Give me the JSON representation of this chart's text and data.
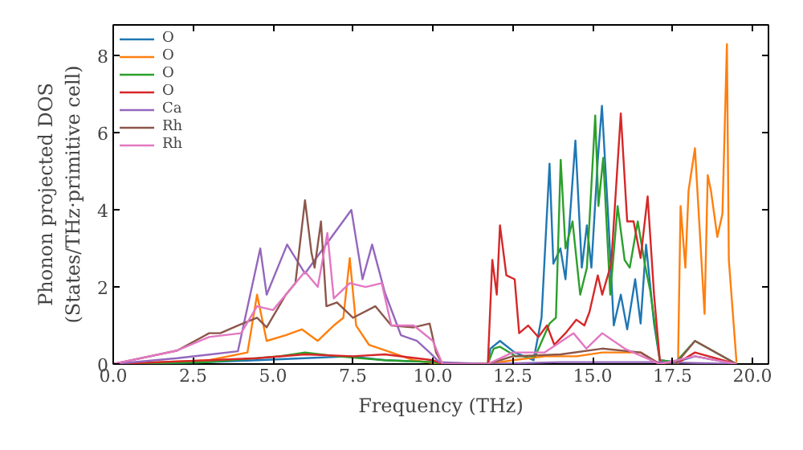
{
  "chart_data": {
    "type": "line",
    "xlabel": "Frequency (THz)",
    "ylabel": "Phonon projected DOS\n(States/THz·primitive cell)",
    "xlim": [
      0,
      20.5
    ],
    "ylim": [
      0,
      8.8
    ],
    "xticks": [
      {
        "value": 0,
        "label": "0.0"
      },
      {
        "value": 2.5,
        "label": "2.5"
      },
      {
        "value": 5,
        "label": "5.0"
      },
      {
        "value": 7.5,
        "label": "7.5"
      },
      {
        "value": 10,
        "label": "10.0"
      },
      {
        "value": 12.5,
        "label": "12.5"
      },
      {
        "value": 15,
        "label": "15.0"
      },
      {
        "value": 17.5,
        "label": "17.5"
      },
      {
        "value": 20,
        "label": "20.0"
      }
    ],
    "yticks": [
      0,
      2,
      4,
      6,
      8
    ],
    "grid": false,
    "legend": "top left",
    "marker": "none",
    "line_style": "solid",
    "series": [
      {
        "name": "O",
        "color": "#1f77b4",
        "x": [
          0,
          3,
          4.5,
          6,
          7.4,
          8.5,
          10,
          10.3,
          11.72,
          11.8,
          12.1,
          12.56,
          13.15,
          13.4,
          13.65,
          13.77,
          13.99,
          14.15,
          14.46,
          14.66,
          14.82,
          14.96,
          15.16,
          15.29,
          15.5,
          15.66,
          15.88,
          16.08,
          16.33,
          16.5,
          16.67,
          16.92,
          17.1,
          17.6,
          18.2,
          19.5
        ],
        "values": [
          0,
          0.05,
          0.1,
          0.15,
          0.2,
          0.1,
          0.05,
          0,
          0,
          0.4,
          0.6,
          0.3,
          0.1,
          1.2,
          5.2,
          2.6,
          3.0,
          2.2,
          5.8,
          2.5,
          3.6,
          2.5,
          5.3,
          6.7,
          3.6,
          1.0,
          1.8,
          0.9,
          2.2,
          1.05,
          3.1,
          1.05,
          0.1,
          0.05,
          0.2,
          0
        ]
      },
      {
        "name": "O",
        "color": "#ff7f0e",
        "x": [
          0,
          3,
          4.2,
          4.5,
          4.8,
          5.4,
          5.9,
          6.4,
          6.9,
          7.2,
          7.4,
          7.6,
          8.0,
          8.7,
          9.4,
          10.2,
          11.72,
          12.5,
          13.5,
          14.5,
          15.3,
          16.5,
          17.1,
          17.67,
          17.75,
          17.9,
          18.0,
          18.2,
          18.5,
          18.6,
          18.7,
          18.9,
          19.06,
          19.2,
          19.26,
          19.5
        ],
        "values": [
          0,
          0.1,
          0.3,
          1.8,
          0.6,
          0.75,
          0.9,
          0.6,
          1.0,
          1.2,
          2.75,
          1.0,
          0.5,
          0.3,
          0.1,
          0,
          0,
          0.1,
          0.2,
          0.2,
          0.3,
          0.3,
          0,
          0,
          4.1,
          2.5,
          4.5,
          5.6,
          1.3,
          4.9,
          4.5,
          3.3,
          3.9,
          8.3,
          2.7,
          0.05
        ]
      },
      {
        "name": "O",
        "color": "#2ca02c",
        "x": [
          0,
          3,
          5.2,
          6,
          7.0,
          8.5,
          10,
          10.3,
          11.72,
          11.9,
          12.1,
          12.6,
          13.2,
          13.65,
          13.85,
          14.0,
          14.15,
          14.37,
          14.61,
          14.82,
          15.08,
          15.18,
          15.33,
          15.55,
          15.78,
          16.0,
          16.16,
          16.41,
          16.63,
          16.8,
          17.1,
          17.6,
          18.2,
          19.5
        ],
        "values": [
          0,
          0.05,
          0.2,
          0.3,
          0.2,
          0.1,
          0.05,
          0,
          0,
          0.4,
          0.45,
          0.2,
          0.2,
          1.05,
          1.2,
          5.3,
          3.0,
          3.7,
          1.8,
          2.5,
          6.45,
          4.1,
          5.35,
          1.8,
          4.1,
          2.7,
          2.5,
          3.7,
          2.6,
          1.9,
          0.1,
          0.05,
          0.6,
          0
        ]
      },
      {
        "name": "O",
        "color": "#d62728",
        "x": [
          0,
          3,
          4.5,
          6,
          7.5,
          8.5,
          10,
          10.3,
          11.72,
          11.86,
          12.0,
          12.1,
          12.3,
          12.56,
          12.7,
          12.98,
          13.3,
          13.57,
          13.8,
          14.15,
          14.49,
          14.74,
          14.9,
          15.16,
          15.3,
          15.58,
          15.88,
          16.08,
          16.28,
          16.5,
          16.72,
          16.92,
          17.1,
          17.17,
          17.6,
          18.2,
          19.5
        ],
        "values": [
          0,
          0.1,
          0.15,
          0.25,
          0.2,
          0.25,
          0.1,
          0,
          0,
          2.7,
          1.8,
          3.6,
          2.3,
          2.2,
          0.8,
          1.0,
          0.7,
          1.0,
          0.5,
          0.8,
          1.15,
          1.0,
          1.35,
          2.3,
          1.8,
          2.6,
          6.5,
          3.7,
          3.7,
          2.75,
          4.35,
          1.8,
          0.1,
          0,
          0,
          0.3,
          0
        ]
      },
      {
        "name": "Ca",
        "color": "#9467bd",
        "x": [
          0,
          2,
          3.9,
          4.6,
          4.8,
          5.44,
          6.0,
          7.45,
          7.8,
          8.1,
          8.5,
          9.0,
          9.5,
          9.9,
          10.2,
          11.72,
          14,
          17.1,
          19.5
        ],
        "values": [
          0,
          0.15,
          0.33,
          3.0,
          1.8,
          3.1,
          2.35,
          4.0,
          2.2,
          3.1,
          1.85,
          0.75,
          0.6,
          0.3,
          0.05,
          0,
          0.05,
          0.05,
          0
        ]
      },
      {
        "name": "Rh",
        "color": "#8c564b",
        "x": [
          0,
          2,
          3.0,
          3.35,
          3.9,
          4.5,
          4.8,
          5.4,
          5.7,
          6.0,
          6.2,
          6.3,
          6.5,
          6.67,
          7.0,
          7.5,
          8.2,
          8.7,
          9.4,
          9.9,
          10.1,
          10.3,
          11.72,
          12.5,
          14.0,
          15.3,
          16.5,
          17.1,
          17.6,
          18.2,
          19.5
        ],
        "values": [
          0,
          0.35,
          0.8,
          0.8,
          1.0,
          1.2,
          0.95,
          1.8,
          2.1,
          4.25,
          2.9,
          2.5,
          3.7,
          1.5,
          1.6,
          1.2,
          1.5,
          1.0,
          0.95,
          1.05,
          0.3,
          0,
          0,
          0.2,
          0.25,
          0.4,
          0.3,
          0,
          0,
          0.6,
          0
        ]
      },
      {
        "name": "Rh",
        "color": "#e377c2",
        "x": [
          0,
          2,
          3.0,
          4.0,
          4.5,
          5.0,
          5.4,
          6.0,
          6.4,
          6.7,
          6.9,
          7.4,
          7.9,
          8.4,
          8.7,
          9.4,
          10.0,
          10.3,
          11.72,
          12.5,
          13.5,
          14.4,
          14.8,
          15.3,
          16.0,
          17.1,
          18.2,
          19.5
        ],
        "values": [
          0,
          0.35,
          0.7,
          0.8,
          1.5,
          1.4,
          1.8,
          2.4,
          2.0,
          3.4,
          1.7,
          2.1,
          2.0,
          2.1,
          1.0,
          1.0,
          0.6,
          0,
          0,
          0.3,
          0.3,
          0.8,
          0.4,
          0.8,
          0.4,
          0,
          0.2,
          0
        ]
      }
    ]
  }
}
